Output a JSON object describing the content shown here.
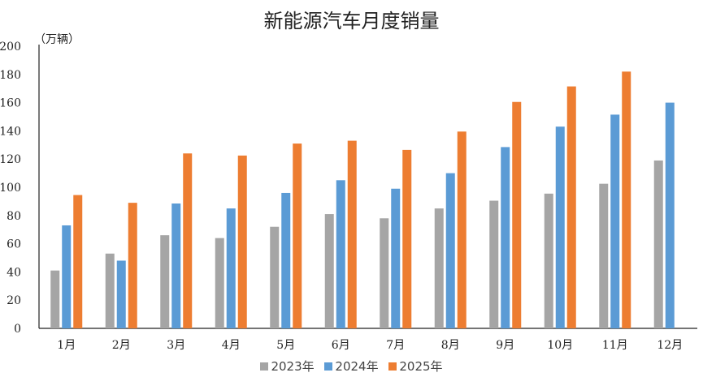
{
  "chart_data": {
    "type": "bar",
    "title": "新能源汽车月度销量",
    "unit_label": "（万辆）",
    "categories": [
      "1月",
      "2月",
      "3月",
      "4月",
      "5月",
      "6月",
      "7月",
      "8月",
      "9月",
      "10月",
      "11月",
      "12月"
    ],
    "series": [
      {
        "name": "2023年",
        "color": "#a5a5a5",
        "values": [
          41,
          53,
          66,
          64,
          72,
          81,
          78,
          85,
          90.5,
          95.5,
          102.5,
          119
        ]
      },
      {
        "name": "2024年",
        "color": "#5b9bd5",
        "values": [
          73,
          48,
          88.5,
          85,
          96,
          105,
          99,
          110,
          128.5,
          143,
          151.5,
          160
        ]
      },
      {
        "name": "2025年",
        "color": "#ed7d31",
        "values": [
          94.5,
          89,
          124,
          122.5,
          131,
          133,
          126.5,
          139.5,
          160.5,
          171.5,
          182,
          null
        ]
      }
    ],
    "yticks": [
      0,
      20,
      40,
      60,
      80,
      100,
      120,
      140,
      160,
      180,
      200
    ],
    "ylim": [
      0,
      200
    ],
    "grid": false,
    "legend_position": "bottom"
  }
}
